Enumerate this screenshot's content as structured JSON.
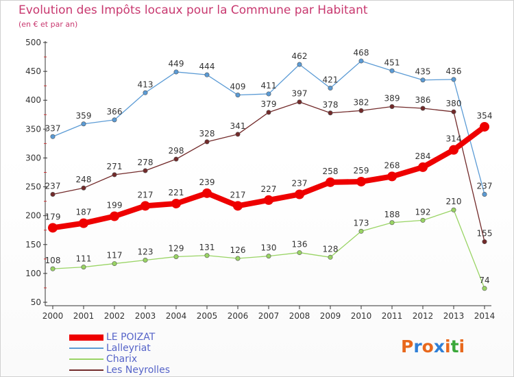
{
  "header": {
    "title": "Evolution des Impôts locaux pour la Commune par Habitant",
    "subtitle": "(en € et par an)"
  },
  "logo": {
    "text": "Proxiti",
    "colors": [
      "#e8681c",
      "#2f7fd6",
      "#e8681c",
      "#2f7fd6",
      "#e8681c",
      "#3aa83a",
      "#e8681c"
    ]
  },
  "chart_data": {
    "type": "line",
    "title": "Evolution des Impôts locaux pour la Commune par Habitant",
    "subtitle": "(en € et par an)",
    "xlabel": "",
    "ylabel": "",
    "x": [
      "2000",
      "2001",
      "2002",
      "2003",
      "2004",
      "2005",
      "2006",
      "2007",
      "2008",
      "2009",
      "2010",
      "2011",
      "2012",
      "2013",
      "2014"
    ],
    "ylim": [
      50,
      500
    ],
    "yticks": [
      "50",
      "100",
      "150",
      "200",
      "250",
      "300",
      "350",
      "400",
      "450",
      "500"
    ],
    "grid": false,
    "legend_position": "bottom-left",
    "series": [
      {
        "name": "Lalleyriat",
        "color": "#5b9bd5",
        "values": [
          337,
          359,
          366,
          413,
          449,
          444,
          409,
          411,
          462,
          421,
          468,
          451,
          435,
          436,
          237
        ]
      },
      {
        "name": "Les Neyrolles",
        "color": "#722a2a",
        "values": [
          237,
          248,
          271,
          278,
          298,
          328,
          341,
          379,
          397,
          378,
          382,
          389,
          386,
          380,
          155
        ]
      },
      {
        "name": "Charix",
        "color": "#99d464",
        "values": [
          108,
          111,
          117,
          123,
          129,
          131,
          126,
          130,
          136,
          128,
          173,
          188,
          192,
          210,
          74
        ]
      },
      {
        "name": "LE POIZAT",
        "color": "#ee0000",
        "values": [
          179,
          187,
          199,
          217,
          221,
          239,
          217,
          227,
          237,
          258,
          259,
          268,
          284,
          314,
          354
        ]
      }
    ],
    "legend_order": [
      "LE POIZAT",
      "Lalleyriat",
      "Charix",
      "Les Neyrolles"
    ]
  }
}
